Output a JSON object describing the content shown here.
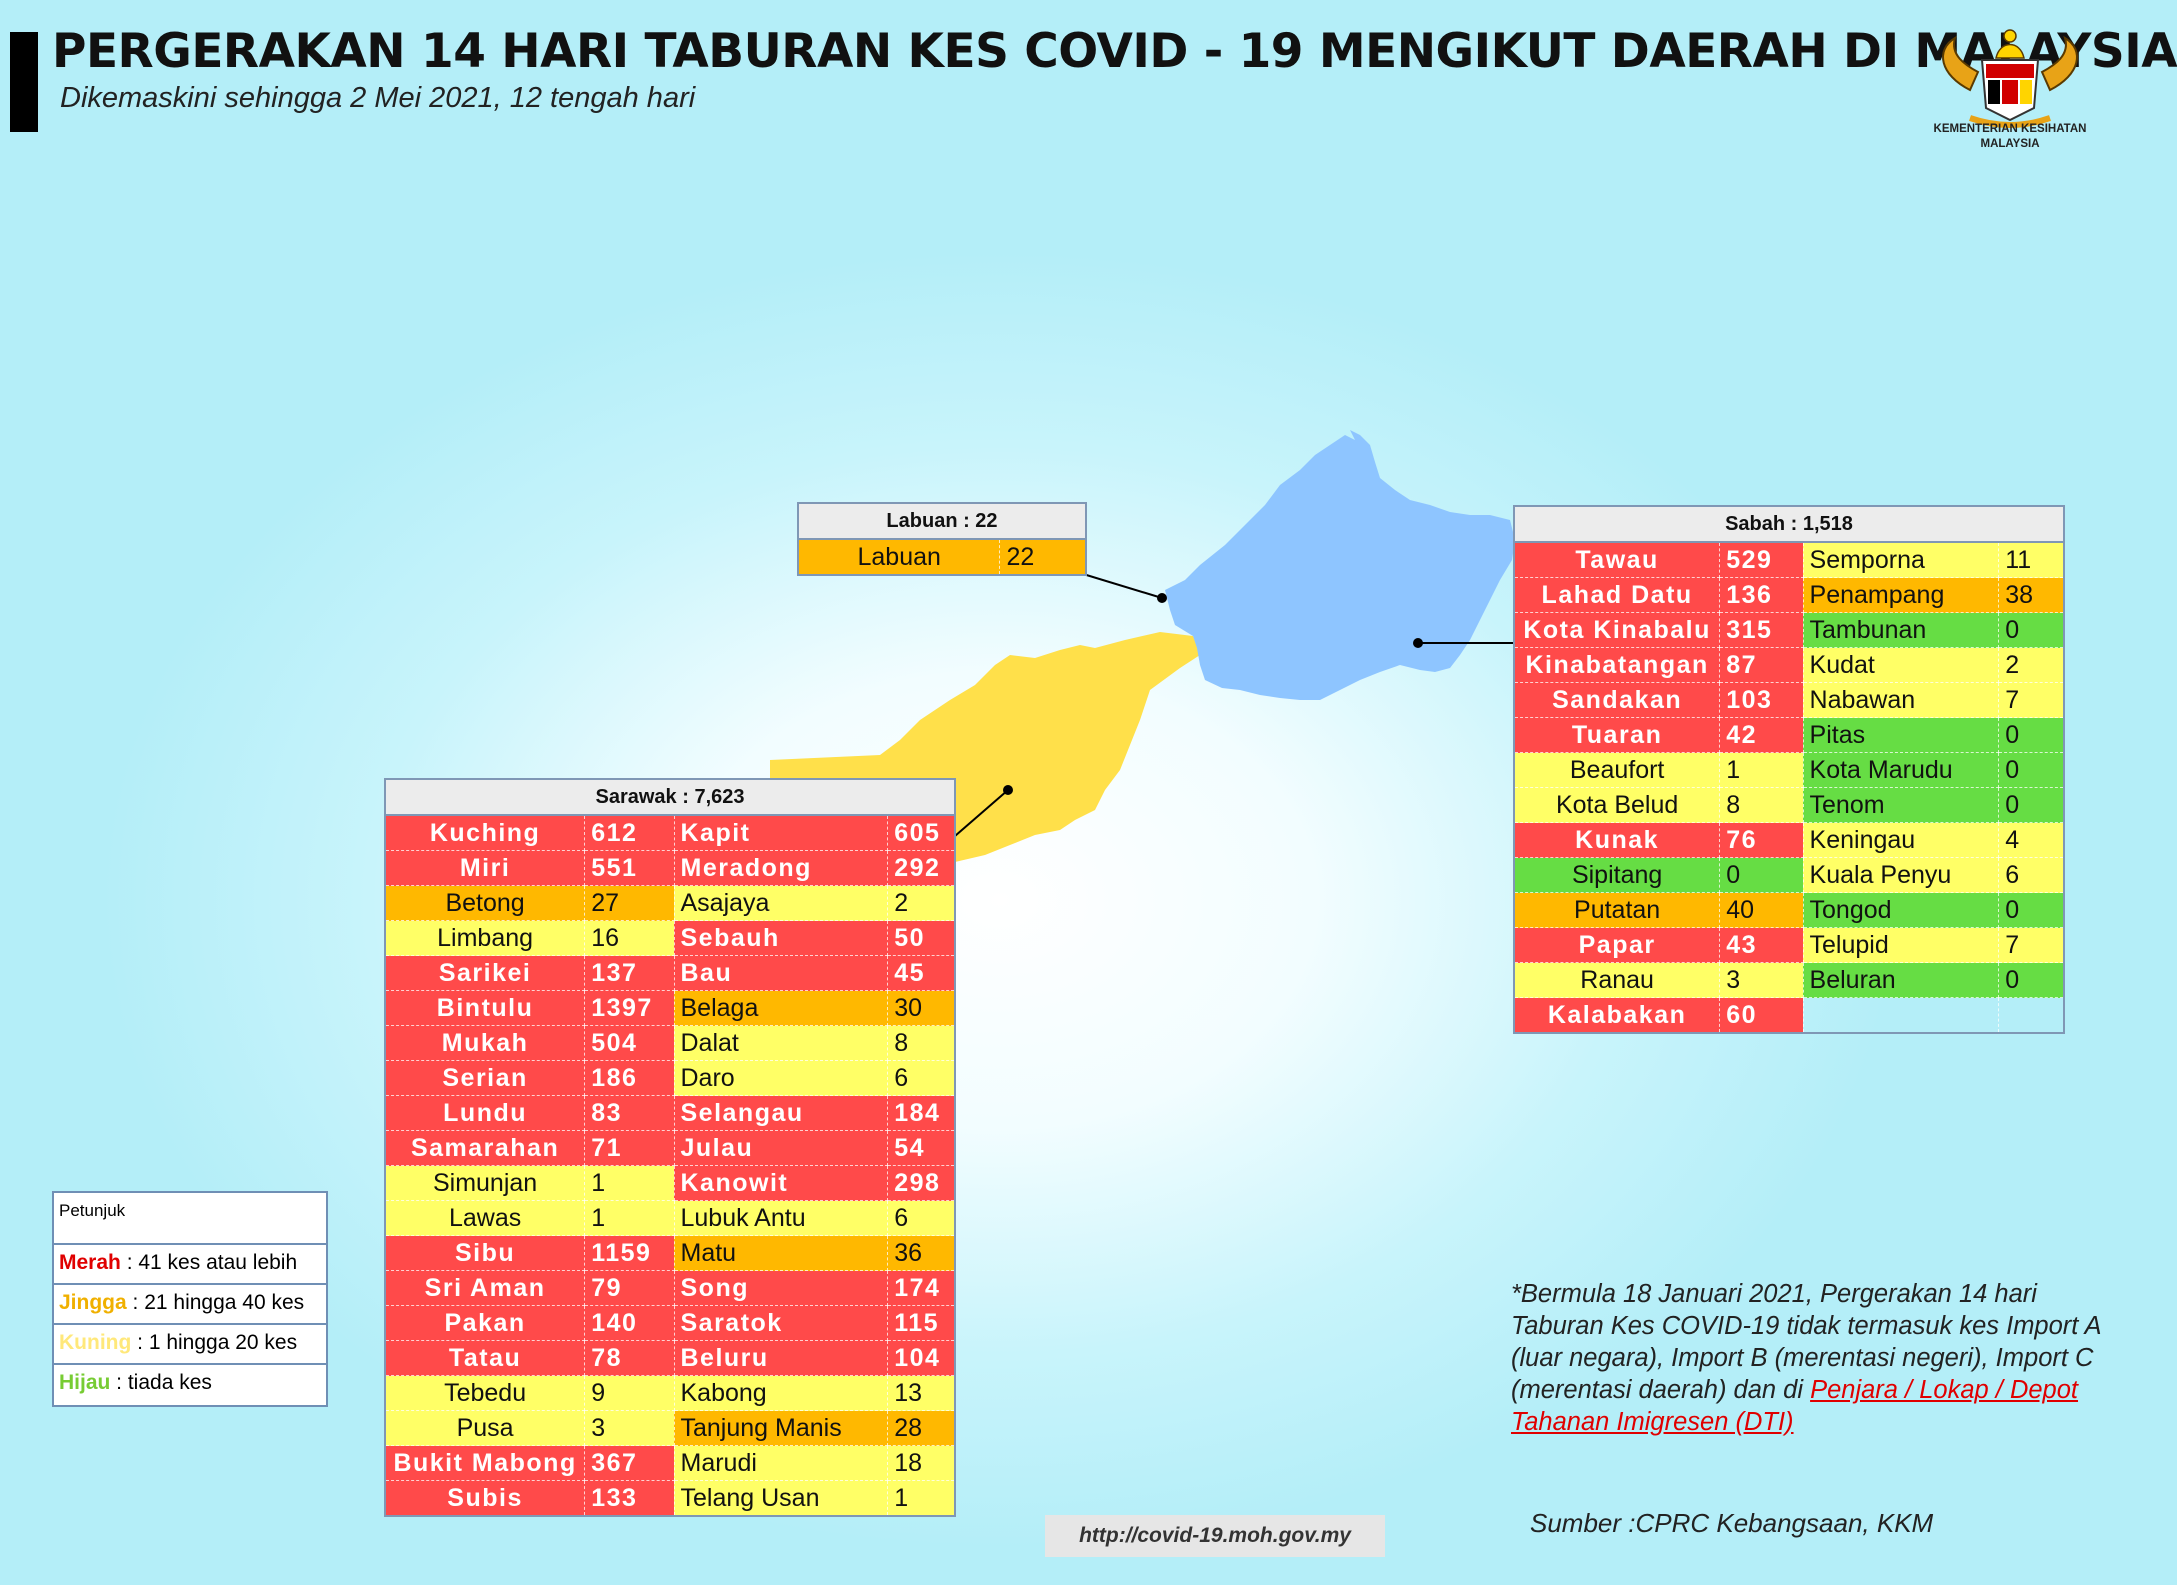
{
  "header": {
    "title": "PERGERAKAN 14 HARI TABURAN KES COVID - 19 MENGIKUT DAERAH DI MALAYSIA",
    "subtitle": "Dikemaskini sehingga 2 Mei 2021, 12 tengah hari"
  },
  "logo": {
    "name": "kkm-crest-icon",
    "line1": "KEMENTERIAN KESIHATAN",
    "line2": "MALAYSIA"
  },
  "map": {
    "sarawak_color": "#ffe04a",
    "sabah_color": "#8ec5ff",
    "labuan_color": "#8ec5ff"
  },
  "labuan": {
    "header": "Labuan : 22",
    "rows": [
      {
        "name": "Labuan",
        "value": "22",
        "level": "orange"
      }
    ]
  },
  "sabah": {
    "header": "Sabah : 1,518",
    "rows": [
      [
        {
          "name": "Tawau",
          "value": "529",
          "level": "red"
        },
        {
          "name": "Semporna",
          "value": "11",
          "level": "yellow"
        }
      ],
      [
        {
          "name": "Lahad Datu",
          "value": "136",
          "level": "red"
        },
        {
          "name": "Penampang",
          "value": "38",
          "level": "orange"
        }
      ],
      [
        {
          "name": "Kota Kinabalu",
          "value": "315",
          "level": "red"
        },
        {
          "name": "Tambunan",
          "value": "0",
          "level": "green"
        }
      ],
      [
        {
          "name": "Kinabatangan",
          "value": "87",
          "level": "red"
        },
        {
          "name": "Kudat",
          "value": "2",
          "level": "yellow"
        }
      ],
      [
        {
          "name": "Sandakan",
          "value": "103",
          "level": "red"
        },
        {
          "name": "Nabawan",
          "value": "7",
          "level": "yellow"
        }
      ],
      [
        {
          "name": "Tuaran",
          "value": "42",
          "level": "red"
        },
        {
          "name": "Pitas",
          "value": "0",
          "level": "green"
        }
      ],
      [
        {
          "name": "Beaufort",
          "value": "1",
          "level": "yellow"
        },
        {
          "name": "Kota Marudu",
          "value": "0",
          "level": "green"
        }
      ],
      [
        {
          "name": "Kota Belud",
          "value": "8",
          "level": "yellow"
        },
        {
          "name": "Tenom",
          "value": "0",
          "level": "green"
        }
      ],
      [
        {
          "name": "Kunak",
          "value": "76",
          "level": "red"
        },
        {
          "name": "Keningau",
          "value": "4",
          "level": "yellow"
        }
      ],
      [
        {
          "name": "Sipitang",
          "value": "0",
          "level": "green"
        },
        {
          "name": "Kuala Penyu",
          "value": "6",
          "level": "yellow"
        }
      ],
      [
        {
          "name": "Putatan",
          "value": "40",
          "level": "orange"
        },
        {
          "name": "Tongod",
          "value": "0",
          "level": "green"
        }
      ],
      [
        {
          "name": "Papar",
          "value": "43",
          "level": "red"
        },
        {
          "name": "Telupid",
          "value": "7",
          "level": "yellow"
        }
      ],
      [
        {
          "name": "Ranau",
          "value": "3",
          "level": "yellow"
        },
        {
          "name": "Beluran",
          "value": "0",
          "level": "green"
        }
      ],
      [
        {
          "name": "Kalabakan",
          "value": "60",
          "level": "red"
        },
        {
          "name": "",
          "value": "",
          "level": "blank"
        }
      ]
    ]
  },
  "sarawak": {
    "header": "Sarawak : 7,623",
    "rows": [
      [
        {
          "name": "Kuching",
          "value": "612",
          "level": "red"
        },
        {
          "name": "Kapit",
          "value": "605",
          "level": "red"
        }
      ],
      [
        {
          "name": "Miri",
          "value": "551",
          "level": "red"
        },
        {
          "name": "Meradong",
          "value": "292",
          "level": "red"
        }
      ],
      [
        {
          "name": "Betong",
          "value": "27",
          "level": "orange"
        },
        {
          "name": "Asajaya",
          "value": "2",
          "level": "yellow"
        }
      ],
      [
        {
          "name": "Limbang",
          "value": "16",
          "level": "yellow"
        },
        {
          "name": "Sebauh",
          "value": "50",
          "level": "red"
        }
      ],
      [
        {
          "name": "Sarikei",
          "value": "137",
          "level": "red"
        },
        {
          "name": "Bau",
          "value": "45",
          "level": "red"
        }
      ],
      [
        {
          "name": "Bintulu",
          "value": "1397",
          "level": "red"
        },
        {
          "name": "Belaga",
          "value": "30",
          "level": "orange"
        }
      ],
      [
        {
          "name": "Mukah",
          "value": "504",
          "level": "red"
        },
        {
          "name": "Dalat",
          "value": "8",
          "level": "yellow"
        }
      ],
      [
        {
          "name": "Serian",
          "value": "186",
          "level": "red"
        },
        {
          "name": "Daro",
          "value": "6",
          "level": "yellow"
        }
      ],
      [
        {
          "name": "Lundu",
          "value": "83",
          "level": "red"
        },
        {
          "name": "Selangau",
          "value": "184",
          "level": "red"
        }
      ],
      [
        {
          "name": "Samarahan",
          "value": "71",
          "level": "red"
        },
        {
          "name": "Julau",
          "value": "54",
          "level": "red"
        }
      ],
      [
        {
          "name": "Simunjan",
          "value": "1",
          "level": "yellow"
        },
        {
          "name": "Kanowit",
          "value": "298",
          "level": "red"
        }
      ],
      [
        {
          "name": "Lawas",
          "value": "1",
          "level": "yellow"
        },
        {
          "name": "Lubuk Antu",
          "value": "6",
          "level": "yellow"
        }
      ],
      [
        {
          "name": "Sibu",
          "value": "1159",
          "level": "red"
        },
        {
          "name": "Matu",
          "value": "36",
          "level": "orange"
        }
      ],
      [
        {
          "name": "Sri Aman",
          "value": "79",
          "level": "red"
        },
        {
          "name": "Song",
          "value": "174",
          "level": "red"
        }
      ],
      [
        {
          "name": "Pakan",
          "value": "140",
          "level": "red"
        },
        {
          "name": "Saratok",
          "value": "115",
          "level": "red"
        }
      ],
      [
        {
          "name": "Tatau",
          "value": "78",
          "level": "red"
        },
        {
          "name": "Beluru",
          "value": "104",
          "level": "red"
        }
      ],
      [
        {
          "name": "Tebedu",
          "value": "9",
          "level": "yellow"
        },
        {
          "name": "Kabong",
          "value": "13",
          "level": "yellow"
        }
      ],
      [
        {
          "name": "Pusa",
          "value": "3",
          "level": "yellow"
        },
        {
          "name": "Tanjung Manis",
          "value": "28",
          "level": "orange"
        }
      ],
      [
        {
          "name": "Bukit Mabong",
          "value": "367",
          "level": "red"
        },
        {
          "name": "Marudi",
          "value": "18",
          "level": "yellow"
        }
      ],
      [
        {
          "name": "Subis",
          "value": "133",
          "level": "red"
        },
        {
          "name": "Telang Usan",
          "value": "1",
          "level": "yellow"
        }
      ]
    ]
  },
  "legend": {
    "title": "Petunjuk",
    "items": [
      {
        "key": "Merah",
        "text": " : 41 kes atau lebih",
        "color": "#e00000"
      },
      {
        "key": "Jingga",
        "text": " : 21 hingga 40 kes",
        "color": "#f0b000"
      },
      {
        "key": "Kuning",
        "text": " : 1 hingga 20 kes",
        "color": "#ffe87a"
      },
      {
        "key": "Hijau",
        "text": " : tiada kes",
        "color": "#77cc33"
      }
    ]
  },
  "note": {
    "text": "*Bermula 18 Januari 2021, Pergerakan 14 hari Taburan Kes COVID-19 tidak termasuk kes Import A (luar negara), Import B (merentasi negeri), Import C (merentasi daerah) dan di ",
    "link": "Penjara / Lokap / Depot Tahanan Imigresen (DTI)"
  },
  "footer": {
    "url": "http://covid-19.moh.gov.my",
    "source": "Sumber :CPRC Kebangsaan,  KKM"
  }
}
